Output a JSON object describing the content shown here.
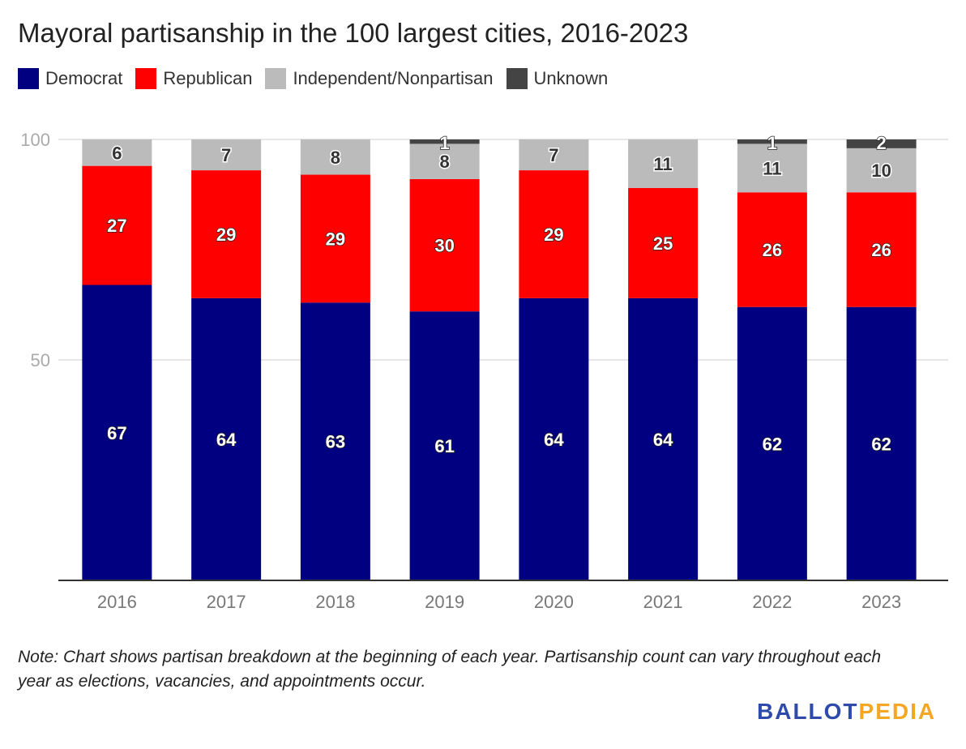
{
  "chart_data": {
    "type": "bar",
    "stacked": true,
    "title": "Mayoral partisanship in the 100 largest cities, 2016-2023",
    "categories": [
      "2016",
      "2017",
      "2018",
      "2019",
      "2020",
      "2021",
      "2022",
      "2023"
    ],
    "series": [
      {
        "name": "Democrat",
        "color": "#000080",
        "values": [
          67,
          64,
          63,
          61,
          64,
          64,
          62,
          62
        ]
      },
      {
        "name": "Republican",
        "color": "#ff0000",
        "values": [
          27,
          29,
          29,
          30,
          29,
          25,
          26,
          26
        ]
      },
      {
        "name": "Independent/Nonpartisan",
        "color": "#bbbbbb",
        "values": [
          6,
          7,
          8,
          8,
          7,
          11,
          11,
          10
        ]
      },
      {
        "name": "Unknown",
        "color": "#444444",
        "values": [
          0,
          0,
          0,
          1,
          0,
          0,
          1,
          2
        ]
      }
    ],
    "ylim": [
      0,
      100
    ],
    "yticks": [
      "50",
      "100"
    ],
    "grid": true,
    "legend": "top-left"
  },
  "note": "Note: Chart shows partisan breakdown at the beginning of each year. Partisanship count can vary throughout each year as elections, vacancies, and appointments occur.",
  "logo": {
    "part1": "BALLOT",
    "part2": "PEDIA",
    "color1": "#2e4bab",
    "color2": "#f5a623"
  }
}
